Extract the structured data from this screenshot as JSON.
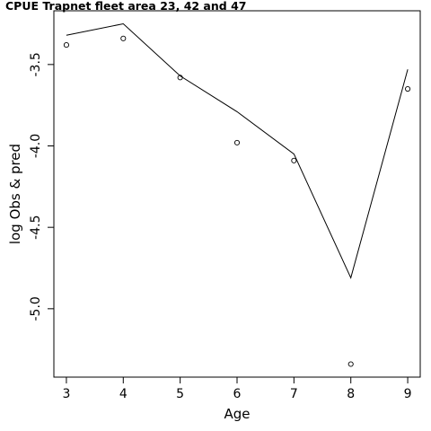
{
  "chart_data": {
    "type": "line",
    "title": "CPUE Trapnet fleet area 23, 42 and 47",
    "xlabel": "Age",
    "ylabel": "log Obs & pred",
    "xlim": [
      2.78,
      9.22
    ],
    "ylim": [
      -5.42,
      -3.17
    ],
    "x_ticks": [
      3,
      4,
      5,
      6,
      7,
      8,
      9
    ],
    "y_ticks": [
      -5.0,
      -4.5,
      -4.0,
      -3.5
    ],
    "x_tick_labels": [
      "3",
      "4",
      "5",
      "6",
      "7",
      "8",
      "9"
    ],
    "y_tick_labels": [
      "-5.0",
      "-4.5",
      "-4.0",
      "-3.5"
    ],
    "series": [
      {
        "role": "observed",
        "style": "points",
        "x": [
          3,
          4,
          5,
          6,
          7,
          8,
          9
        ],
        "y": [
          -3.38,
          -3.34,
          -3.58,
          -3.98,
          -4.09,
          -5.34,
          -3.65
        ]
      },
      {
        "role": "predicted",
        "style": "line",
        "x": [
          3,
          4,
          5,
          6,
          7,
          8,
          9
        ],
        "y": [
          -3.32,
          -3.25,
          -3.57,
          -3.79,
          -4.05,
          -4.81,
          -3.53
        ]
      }
    ],
    "grid": false,
    "legend": "none"
  }
}
